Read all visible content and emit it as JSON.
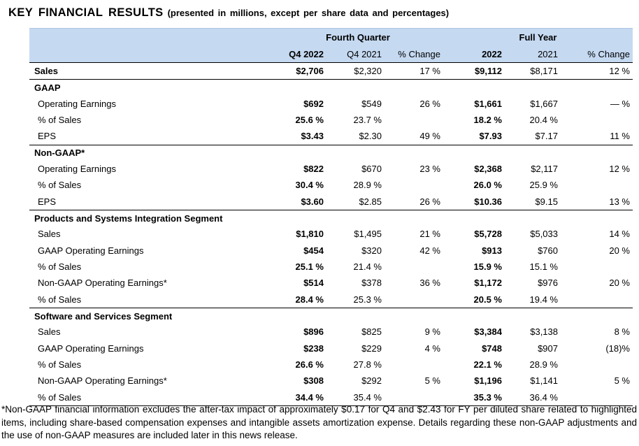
{
  "title": {
    "main": "KEY FINANCIAL RESULTS",
    "subtitle": "(presented in millions, except per share data and percentages)"
  },
  "table": {
    "header": {
      "group_q4": "Fourth Quarter",
      "group_fy": "Full Year",
      "columns": [
        "Q4 2022",
        "Q4 2021",
        "% Change",
        "2022",
        "2021",
        "% Change"
      ],
      "header_bg": "#c5d9f1"
    },
    "bold_value_columns": [
      0,
      3
    ],
    "rows": [
      {
        "label": "Sales",
        "bold": true,
        "indent": 0,
        "section_start": false,
        "values": [
          "$2,706",
          "$2,320",
          "17 %",
          "$9,112",
          "$8,171",
          "12 %"
        ]
      },
      {
        "label": "GAAP",
        "bold": true,
        "indent": 0,
        "section_start": true,
        "values": [
          "",
          "",
          "",
          "",
          "",
          ""
        ]
      },
      {
        "label": "Operating Earnings",
        "bold": false,
        "indent": 1,
        "section_start": false,
        "values": [
          "$692",
          "$549",
          "26 %",
          "$1,661",
          "$1,667",
          "— %"
        ]
      },
      {
        "label": "% of Sales",
        "bold": false,
        "indent": 1,
        "section_start": false,
        "values": [
          "25.6 %",
          "23.7 %",
          "",
          "18.2 %",
          "20.4 %",
          ""
        ]
      },
      {
        "label": "EPS",
        "bold": false,
        "indent": 1,
        "section_start": false,
        "values": [
          "$3.43",
          "$2.30",
          "49 %",
          "$7.93",
          "$7.17",
          "11 %"
        ]
      },
      {
        "label": "Non-GAAP*",
        "bold": true,
        "indent": 0,
        "section_start": true,
        "values": [
          "",
          "",
          "",
          "",
          "",
          ""
        ]
      },
      {
        "label": "Operating Earnings",
        "bold": false,
        "indent": 1,
        "section_start": false,
        "values": [
          "$822",
          "$670",
          "23 %",
          "$2,368",
          "$2,117",
          "12 %"
        ]
      },
      {
        "label": "% of Sales",
        "bold": false,
        "indent": 1,
        "section_start": false,
        "values": [
          "30.4 %",
          "28.9 %",
          "",
          "26.0 %",
          "25.9 %",
          ""
        ]
      },
      {
        "label": "EPS",
        "bold": false,
        "indent": 1,
        "section_start": false,
        "values": [
          "$3.60",
          "$2.85",
          "26 %",
          "$10.36",
          "$9.15",
          "13 %"
        ]
      },
      {
        "label": "Products and Systems Integration Segment",
        "bold": true,
        "indent": 0,
        "section_start": true,
        "values": [
          "",
          "",
          "",
          "",
          "",
          ""
        ]
      },
      {
        "label": "Sales",
        "bold": false,
        "indent": 1,
        "section_start": false,
        "values": [
          "$1,810",
          "$1,495",
          "21 %",
          "$5,728",
          "$5,033",
          "14 %"
        ]
      },
      {
        "label": "GAAP Operating Earnings",
        "bold": false,
        "indent": 1,
        "section_start": false,
        "values": [
          "$454",
          "$320",
          "42 %",
          "$913",
          "$760",
          "20 %"
        ]
      },
      {
        "label": "% of Sales",
        "bold": false,
        "indent": 1,
        "section_start": false,
        "values": [
          "25.1 %",
          "21.4 %",
          "",
          "15.9 %",
          "15.1 %",
          ""
        ]
      },
      {
        "label": "Non-GAAP Operating Earnings*",
        "bold": false,
        "indent": 1,
        "section_start": false,
        "values": [
          "$514",
          "$378",
          "36 %",
          "$1,172",
          "$976",
          "20 %"
        ]
      },
      {
        "label": "% of Sales",
        "bold": false,
        "indent": 1,
        "section_start": false,
        "values": [
          "28.4 %",
          "25.3 %",
          "",
          "20.5 %",
          "19.4 %",
          ""
        ]
      },
      {
        "label": "Software and Services Segment",
        "bold": true,
        "indent": 0,
        "section_start": true,
        "values": [
          "",
          "",
          "",
          "",
          "",
          ""
        ]
      },
      {
        "label": "Sales",
        "bold": false,
        "indent": 1,
        "section_start": false,
        "values": [
          "$896",
          "$825",
          "9 %",
          "$3,384",
          "$3,138",
          "8 %"
        ]
      },
      {
        "label": "GAAP Operating Earnings",
        "bold": false,
        "indent": 1,
        "section_start": false,
        "values": [
          "$238",
          "$229",
          "4 %",
          "$748",
          "$907",
          "(18)%"
        ]
      },
      {
        "label": "% of Sales",
        "bold": false,
        "indent": 1,
        "section_start": false,
        "values": [
          "26.6 %",
          "27.8 %",
          "",
          "22.1 %",
          "28.9 %",
          ""
        ]
      },
      {
        "label": "Non-GAAP Operating Earnings*",
        "bold": false,
        "indent": 1,
        "section_start": false,
        "values": [
          "$308",
          "$292",
          "5 %",
          "$1,196",
          "$1,141",
          "5 %"
        ]
      },
      {
        "label": "% of Sales",
        "bold": false,
        "indent": 1,
        "section_start": false,
        "values": [
          "34.4 %",
          "35.4 %",
          "",
          "35.3 %",
          "36.4 %",
          ""
        ]
      }
    ]
  },
  "footnote": "*Non-GAAP financial information excludes the after-tax impact of approximately $0.17 for Q4 and $2.43 for FY per diluted share related to highlighted items, including share-based compensation expenses and intangible assets amortization expense. Details regarding these non-GAAP adjustments and the use of non-GAAP measures are included later in this news release."
}
